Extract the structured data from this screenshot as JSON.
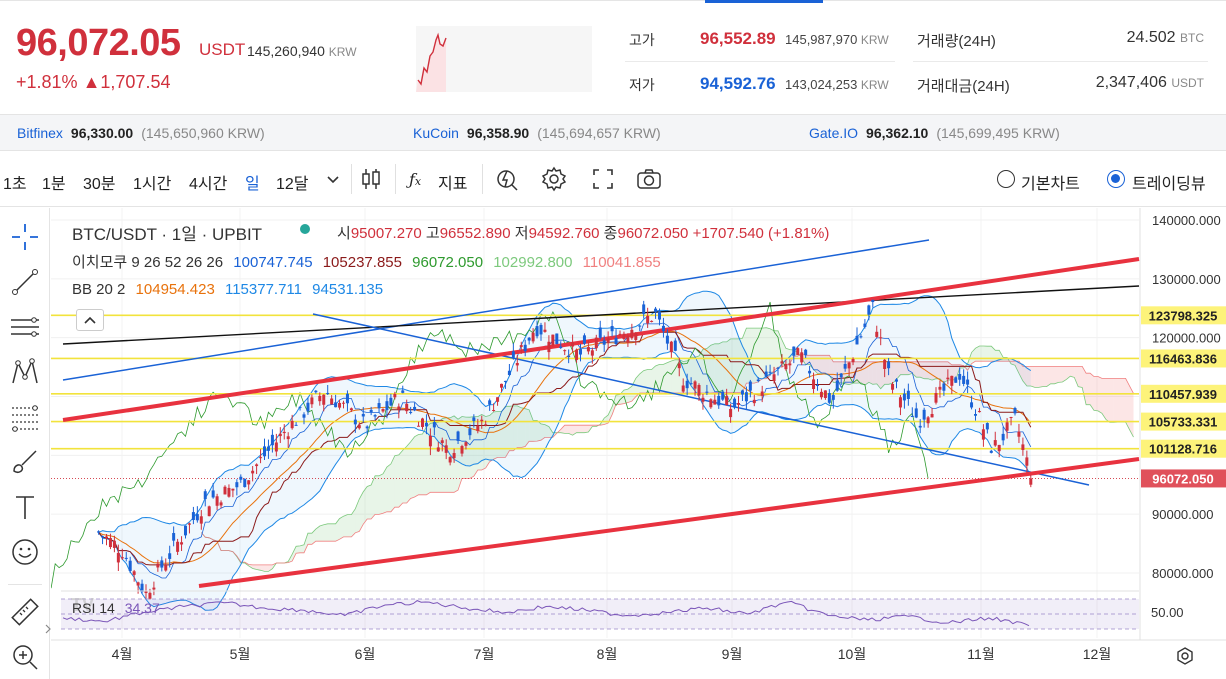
{
  "header": {
    "price": "96,072.05",
    "price_unit": "USDT",
    "price_krw": "145,260,940",
    "krw_unit": "KRW",
    "change_pct": "+1.81%",
    "change_abs": "▲1,707.54",
    "high_label": "고가",
    "high_value": "96,552.89",
    "high_krw": "145,987,970",
    "low_label": "저가",
    "low_value": "94,592.76",
    "low_krw": "143,024,253",
    "vol_label": "거래량(24H)",
    "vol_value": "24.502",
    "vol_unit": "BTC",
    "amt_label": "거래대금(24H)",
    "amt_value": "2,347,406",
    "amt_unit": "USDT"
  },
  "exchanges": [
    {
      "name": "Bitfinex",
      "price": "96,330.00",
      "krw": "(145,650,960 KRW)"
    },
    {
      "name": "KuCoin",
      "price": "96,358.90",
      "krw": "(145,694,657 KRW)"
    },
    {
      "name": "Gate.IO",
      "price": "96,362.10",
      "krw": "(145,699,495 KRW)"
    }
  ],
  "toolbar": {
    "intervals": [
      "1초",
      "1분",
      "30분",
      "1시간",
      "4시간",
      "일",
      "12달"
    ],
    "active_interval": "일",
    "indicator_label": "지표",
    "basic_chart": "기본차트",
    "tradingview": "트레이딩뷰"
  },
  "legend": {
    "symbol": "BTC/USDT · 1일 · UPBIT",
    "ohlc": [
      {
        "l": "시",
        "v": "95007.270"
      },
      {
        "l": "고",
        "v": "96552.890"
      },
      {
        "l": "저",
        "v": "94592.760"
      },
      {
        "l": "종",
        "v": "96072.050"
      }
    ],
    "change": "+1707.540 (+1.81%)",
    "ichimoku_label": "이치모쿠 9 26 52 26 26",
    "ichimoku_values": [
      "100747.745",
      "105237.855",
      "96072.050",
      "102992.800",
      "110041.855"
    ],
    "bb_label": "BB 20 2",
    "bb_values": [
      "104954.423",
      "115377.711",
      "94531.135"
    ],
    "rsi_label": "RSI 14",
    "rsi_value": "34.37"
  },
  "colors": {
    "up": "#d0303c",
    "down": "#1a62d6",
    "accent": "#1a62d6",
    "tenkan": "#1a62d6",
    "kijun": "#8b1a1a",
    "chikou": "#2e9a2e",
    "spanA": "#7dc97d",
    "spanB": "#f08080",
    "bb_mid": "#e8720c",
    "bb_band": "#1e88e5",
    "rsi": "#7a55b8"
  },
  "chart_data": {
    "type": "candlestick",
    "symbol": "BTC/USDT",
    "timeframe": "1D",
    "price_axis_ticks": [
      140000,
      130000,
      120000,
      90000,
      80000
    ],
    "price_axis_labels": [
      "140000.000",
      "130000.000",
      "120000.000",
      "90000.000",
      "80000.000"
    ],
    "ylim": [
      76000,
      141000
    ],
    "x_labels": [
      "4월",
      "5월",
      "6월",
      "7월",
      "8월",
      "9월",
      "10월",
      "11월",
      "12월"
    ],
    "horizontal_levels": [
      {
        "value": 123798.325,
        "label": "123798.325"
      },
      {
        "value": 116463.836,
        "label": "116463.836"
      },
      {
        "value": 110457.939,
        "label": "110457.939"
      },
      {
        "value": 105733.331,
        "label": "105733.331"
      },
      {
        "value": 101128.716,
        "label": "101128.716"
      }
    ],
    "last_price": {
      "value": 96072.05,
      "label": "96072.050"
    },
    "close_path": [
      [
        "3/26",
        86900
      ],
      [
        "4/1",
        84000
      ],
      [
        "4/7",
        76500
      ],
      [
        "4/10",
        80000
      ],
      [
        "4/22",
        92000
      ],
      [
        "5/1",
        95000
      ],
      [
        "5/12",
        104000
      ],
      [
        "5/22",
        111000
      ],
      [
        "6/1",
        105000
      ],
      [
        "6/10",
        110000
      ],
      [
        "6/22",
        101000
      ],
      [
        "7/1",
        106000
      ],
      [
        "7/14",
        122000
      ],
      [
        "7/25",
        117000
      ],
      [
        "8/13",
        124000
      ],
      [
        "8/20",
        113000
      ],
      [
        "9/1",
        108000
      ],
      [
        "9/18",
        117000
      ],
      [
        "9/26",
        109000
      ],
      [
        "10/6",
        125000
      ],
      [
        "10/10",
        113000
      ],
      [
        "10/17",
        106000
      ],
      [
        "10/27",
        114000
      ],
      [
        "11/4",
        101000
      ],
      [
        "11/10",
        106000
      ],
      [
        "11/14",
        96072
      ]
    ],
    "rsi": {
      "label": "RSI 14",
      "value": 34.37,
      "ticks": [
        50
      ],
      "tick_labels": [
        "50.00"
      ],
      "path": [
        45,
        40,
        52,
        60,
        65,
        58,
        55,
        48,
        62,
        66,
        58,
        52,
        60,
        55,
        48,
        52,
        58,
        50,
        66,
        48,
        42,
        47,
        38,
        45,
        34.37
      ]
    }
  }
}
